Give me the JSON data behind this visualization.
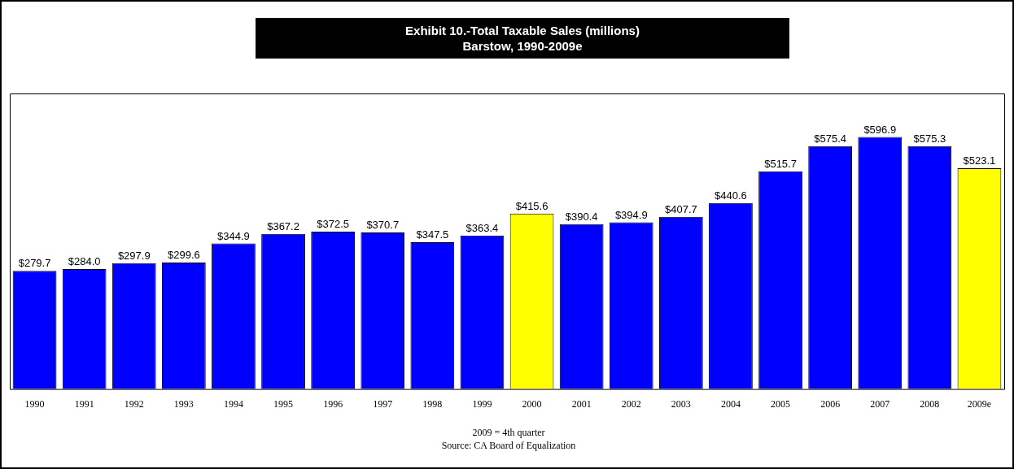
{
  "chart_data": {
    "type": "bar",
    "title": "Exhibit 10.-Total Taxable Sales (millions)",
    "subtitle": "Barstow, 1990-2009e",
    "categories": [
      "1990",
      "1991",
      "1992",
      "1993",
      "1994",
      "1995",
      "1996",
      "1997",
      "1998",
      "1999",
      "2000",
      "2001",
      "2002",
      "2003",
      "2004",
      "2005",
      "2006",
      "2007",
      "2008",
      "2009e"
    ],
    "values": [
      279.7,
      284.0,
      297.9,
      299.6,
      344.9,
      367.2,
      372.5,
      370.7,
      347.5,
      363.4,
      415.6,
      390.4,
      394.9,
      407.7,
      440.6,
      515.7,
      575.4,
      596.9,
      575.3,
      523.1
    ],
    "colors": [
      "#0000ff",
      "#0000ff",
      "#0000ff",
      "#0000ff",
      "#0000ff",
      "#0000ff",
      "#0000ff",
      "#0000ff",
      "#0000ff",
      "#0000ff",
      "#ffff00",
      "#0000ff",
      "#0000ff",
      "#0000ff",
      "#0000ff",
      "#0000ff",
      "#0000ff",
      "#0000ff",
      "#0000ff",
      "#ffff00"
    ],
    "value_labels": [
      "$279.7",
      "$284.0",
      "$297.9",
      "$299.6",
      "$344.9",
      "$367.2",
      "$372.5",
      "$370.7",
      "$347.5",
      "$363.4",
      "$415.6",
      "$390.4",
      "$394.9",
      "$407.7",
      "$440.6",
      "$515.7",
      "$575.4",
      "$596.9",
      "$575.3",
      "$523.1"
    ],
    "grid": false,
    "legend": false,
    "annotations": [
      "2009 = 4th quarter",
      "Source:  CA Board of Equalization"
    ]
  }
}
